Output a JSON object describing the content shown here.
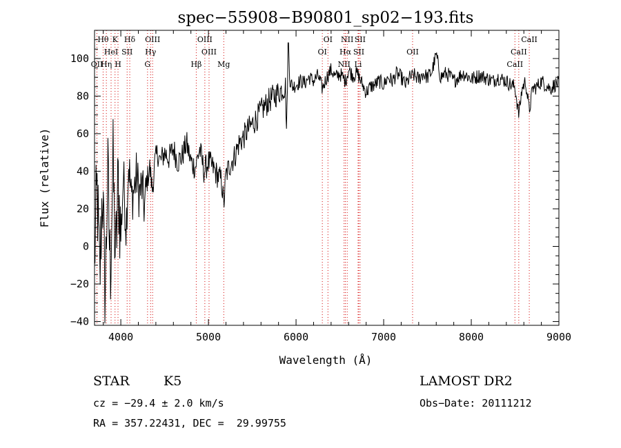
{
  "chart_data": {
    "type": "line",
    "title": "spec−55908−B90801_sp02−193.fits",
    "xlabel": "Wavelength (Å)",
    "ylabel": "Flux (relative)",
    "xlim": [
      3700,
      9000
    ],
    "ylim": [
      -42,
      115
    ],
    "x_ticks": [
      4000,
      5000,
      6000,
      7000,
      8000,
      9000
    ],
    "y_ticks": [
      -40,
      -20,
      0,
      20,
      40,
      60,
      80,
      100
    ],
    "x_tick_labels": [
      "4000",
      "5000",
      "6000",
      "7000",
      "8000",
      "9000"
    ],
    "y_tick_labels": [
      "−40",
      "−20",
      "0",
      "20",
      "40",
      "60",
      "80",
      "100"
    ],
    "grid": false,
    "line_color": "#000000",
    "marker_color": "#d40000",
    "series": [
      {
        "x": [
          3700,
          3730,
          3760,
          3790,
          3820,
          3850,
          3880,
          3910,
          3940,
          3970,
          4000,
          4030,
          4060,
          4090,
          4120,
          4150,
          4180,
          4210,
          4240,
          4270,
          4300,
          4330,
          4360,
          4390,
          4420,
          4450,
          4500,
          4550,
          4600,
          4650,
          4700,
          4750,
          4800,
          4850,
          4900,
          4950,
          5000,
          5050,
          5100,
          5150,
          5175,
          5200,
          5250,
          5300,
          5350,
          5400,
          5450,
          5500,
          5550,
          5600,
          5650,
          5700,
          5750,
          5800,
          5850,
          5880,
          5893,
          5910,
          5930,
          5960,
          6000,
          6050,
          6100,
          6150,
          6200,
          6250,
          6300,
          6350,
          6400,
          6450,
          6500,
          6563,
          6600,
          6650,
          6700,
          6750,
          6800,
          6850,
          6900,
          6950,
          7000,
          7050,
          7100,
          7150,
          7200,
          7250,
          7300,
          7350,
          7400,
          7450,
          7500,
          7550,
          7600,
          7650,
          7700,
          7750,
          7800,
          7850,
          7900,
          7950,
          8000,
          8050,
          8100,
          8150,
          8200,
          8250,
          8300,
          8350,
          8400,
          8450,
          8498,
          8542,
          8580,
          8620,
          8662,
          8700,
          8750,
          8800,
          8850,
          8900,
          8950,
          9000
        ],
        "y": [
          -5,
          30,
          -20,
          35,
          -30,
          40,
          -15,
          45,
          -10,
          35,
          5,
          38,
          10,
          45,
          25,
          30,
          38,
          28,
          32,
          20,
          35,
          42,
          30,
          45,
          50,
          45,
          50,
          47,
          52,
          45,
          48,
          55,
          45,
          42,
          52,
          40,
          45,
          42,
          38,
          35,
          22,
          38,
          44,
          48,
          55,
          58,
          62,
          65,
          68,
          72,
          75,
          78,
          80,
          82,
          84,
          85,
          58,
          112,
          88,
          85,
          86,
          88,
          87,
          90,
          88,
          91,
          84,
          90,
          94,
          90,
          92,
          88,
          94,
          91,
          92,
          87,
          82,
          85,
          86,
          88,
          86,
          90,
          88,
          92,
          90,
          86,
          90,
          91,
          89,
          92,
          90,
          93,
          102,
          90,
          92,
          91,
          88,
          90,
          92,
          91,
          89,
          90,
          91,
          90,
          89,
          88,
          90,
          89,
          88,
          86,
          85,
          70,
          84,
          88,
          72,
          84,
          85,
          88,
          86,
          84,
          86,
          87
        ]
      }
    ],
    "line_markers": [
      {
        "label": "Hθ",
        "x": 3798,
        "row": 1
      },
      {
        "label": "K",
        "x": 3934,
        "row": 1
      },
      {
        "label": "Hδ",
        "x": 4102,
        "row": 1
      },
      {
        "label": "OIII",
        "x": 4363,
        "row": 1
      },
      {
        "label": "OIII",
        "x": 4959,
        "row": 1
      },
      {
        "label": "OI",
        "x": 6364,
        "row": 1
      },
      {
        "label": "NII",
        "x": 6584,
        "row": 1
      },
      {
        "label": "SII",
        "x": 6731,
        "row": 1
      },
      {
        "label": "CaII",
        "x": 8662,
        "row": 1
      },
      {
        "label": "HeI",
        "x": 3889,
        "row": 2
      },
      {
        "label": "SII",
        "x": 4072,
        "row": 2
      },
      {
        "label": "Hγ",
        "x": 4340,
        "row": 2
      },
      {
        "label": "OIII",
        "x": 5007,
        "row": 2
      },
      {
        "label": "OI",
        "x": 6300,
        "row": 2
      },
      {
        "label": "Hα",
        "x": 6563,
        "row": 2
      },
      {
        "label": "SII",
        "x": 6716,
        "row": 2
      },
      {
        "label": "OII",
        "x": 7330,
        "row": 2
      },
      {
        "label": "CaII",
        "x": 8542,
        "row": 2
      },
      {
        "label": "OII",
        "x": 3727,
        "row": 3
      },
      {
        "label": "Hη",
        "x": 3835,
        "row": 3
      },
      {
        "label": "H",
        "x": 3968,
        "row": 3
      },
      {
        "label": "G",
        "x": 4305,
        "row": 3
      },
      {
        "label": "Hβ",
        "x": 4861,
        "row": 3
      },
      {
        "label": "Mg",
        "x": 5175,
        "row": 3
      },
      {
        "label": "NII",
        "x": 6548,
        "row": 3
      },
      {
        "label": "Li",
        "x": 6708,
        "row": 3
      },
      {
        "label": "CaII",
        "x": 8498,
        "row": 3
      }
    ]
  },
  "info": {
    "object_class": "STAR",
    "subclass": "K5",
    "survey": "LAMOST DR2",
    "velocity": "cz = −29.4 ± 2.0 km/s",
    "obs_date": "Obs−Date: 20111212",
    "coords": "RA = 357.22431, DEC =  29.99755"
  }
}
